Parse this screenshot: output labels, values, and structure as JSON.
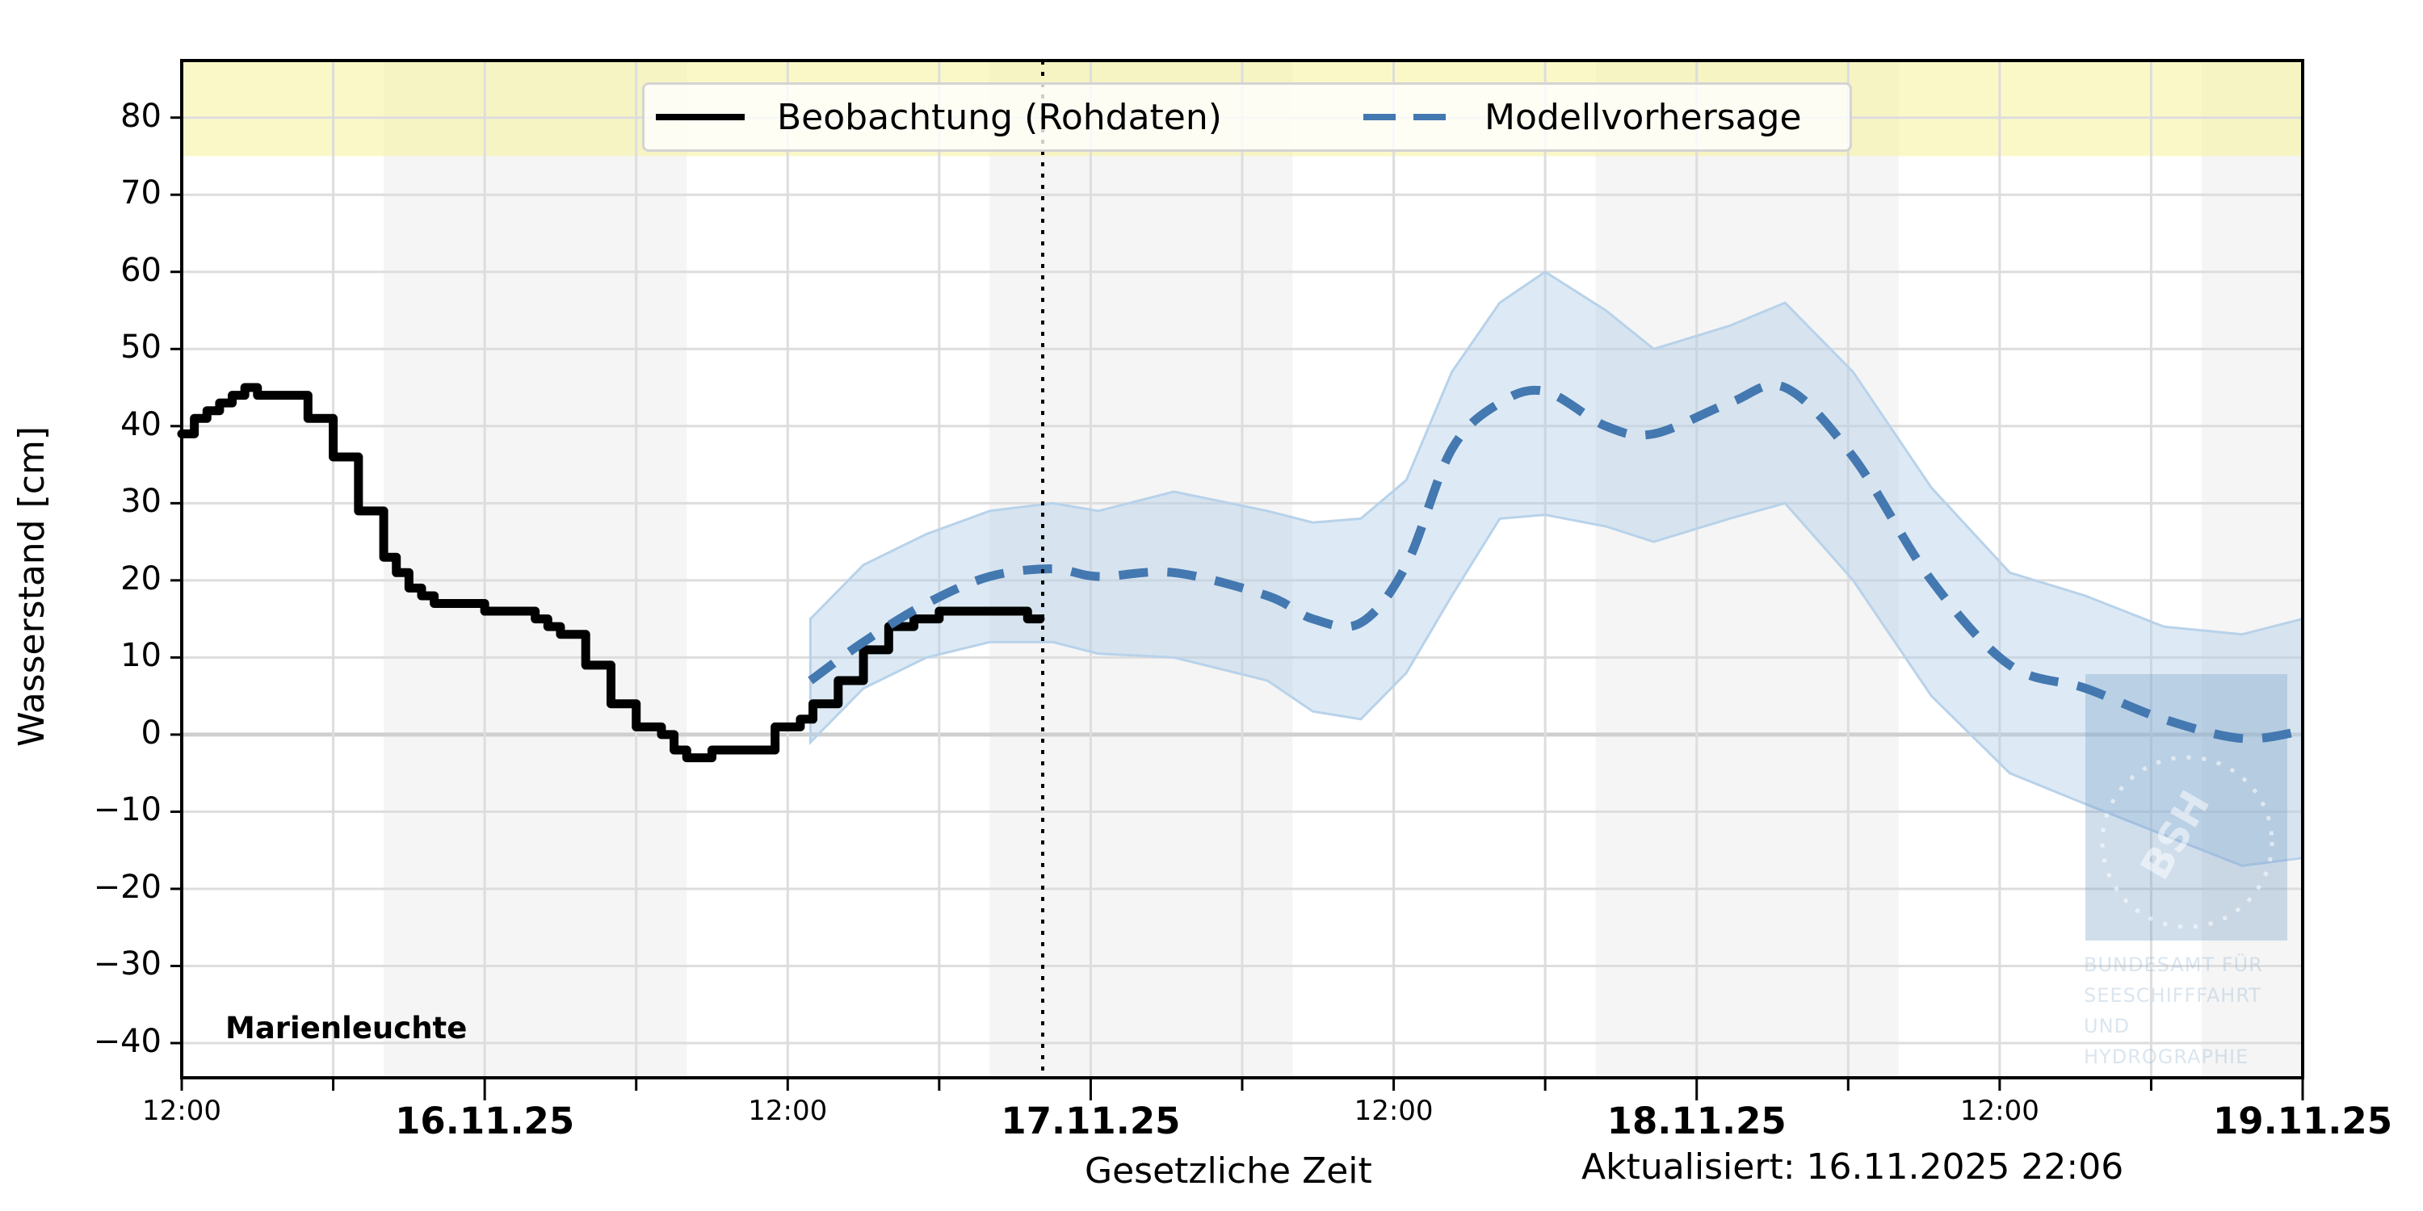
{
  "chart_data": {
    "type": "line",
    "title": "",
    "station": "Marienleuchte",
    "xlabel": "Gesetzliche Zeit",
    "ylabel": "Wasserstand [cm]",
    "updated": "Aktualisiert: 16.11.2025 22:06",
    "x_unit": "hours since 15.11.25 12:00",
    "xlim": [
      0,
      84
    ],
    "ylim": [
      -44.5,
      87.4
    ],
    "grid": true,
    "legend_position": "upper center",
    "yticks": [
      80,
      70,
      60,
      50,
      40,
      30,
      20,
      10,
      0,
      -10,
      -20,
      -30,
      -40
    ],
    "ytick_labels": [
      "80",
      "70",
      "60",
      "50",
      "40",
      "30",
      "20",
      "10",
      "0",
      "−10",
      "−20",
      "−30",
      "−40"
    ],
    "xticks": [
      {
        "h": 0,
        "label": "12:00",
        "major": false
      },
      {
        "h": 12,
        "label": "16.11.25",
        "major": true
      },
      {
        "h": 24,
        "label": "12:00",
        "major": false
      },
      {
        "h": 36,
        "label": "17.11.25",
        "major": true
      },
      {
        "h": 48,
        "label": "12:00",
        "major": false
      },
      {
        "h": 60,
        "label": "18.11.25",
        "major": true
      },
      {
        "h": 72,
        "label": "12:00",
        "major": false
      },
      {
        "h": 84,
        "label": "19.11.25",
        "major": true
      }
    ],
    "minor_xticks": [
      6,
      18,
      30,
      42,
      54,
      66,
      78
    ],
    "threshold_band": {
      "from": 75,
      "to": 87.4,
      "color": "#fbf8c8"
    },
    "night_bands": [
      [
        8,
        20
      ],
      [
        32,
        44
      ],
      [
        56,
        68
      ],
      [
        80,
        84
      ]
    ],
    "now_line_h": 34.1,
    "legend": [
      "Beobachtung (Rohdaten)",
      "Modellvorhersage"
    ],
    "series": [
      {
        "name": "Beobachtung (Rohdaten)",
        "color": "#000000",
        "style": "solid-step",
        "x": [
          0,
          0.5,
          1,
          1.5,
          2,
          2.5,
          3,
          3.5,
          4,
          5,
          6,
          7,
          8,
          8.5,
          9,
          9.5,
          10,
          11,
          12,
          13,
          14,
          14.5,
          15,
          16,
          17,
          18,
          19,
          19.5,
          20,
          20.5,
          21,
          22,
          23,
          23.5,
          24,
          24.5,
          25,
          26,
          27,
          28,
          29,
          30,
          31,
          32,
          33,
          33.5,
          34
        ],
        "values": [
          39,
          41,
          42,
          43,
          44,
          45,
          44,
          44,
          44,
          41,
          36,
          29,
          23,
          21,
          19,
          18,
          17,
          17,
          16,
          16,
          15,
          14,
          13,
          9,
          4,
          1,
          0,
          -2,
          -3,
          -3,
          -2,
          -2,
          -2,
          1,
          1,
          2,
          4,
          7,
          11,
          14,
          15,
          16,
          16,
          16,
          16,
          15,
          15
        ]
      },
      {
        "name": "Modellvorhersage",
        "color": "#4478b0",
        "style": "dashed",
        "x": [
          24.9,
          27,
          29.5,
          32,
          34.5,
          36.3,
          39.3,
          43,
          44.8,
          46.7,
          48.5,
          50.3,
          52.2,
          54,
          56.4,
          58.3,
          61.3,
          63.5,
          66.2,
          69.3,
          72.4,
          75.4,
          78.5,
          81.6,
          84
        ],
        "values": [
          7,
          12,
          17,
          20.5,
          21.5,
          20.5,
          21,
          18,
          15,
          14.5,
          22,
          37,
          43,
          44.5,
          40,
          39,
          43,
          45,
          36,
          20,
          9,
          6,
          2,
          -0.5,
          0.5
        ]
      },
      {
        "name": "Vorhersage-Unsicherheit (oben)",
        "color": "#b8d2ea",
        "style": "band-upper",
        "x": [
          24.9,
          27,
          29.5,
          32,
          34.5,
          36.3,
          39.3,
          43,
          44.8,
          46.7,
          48.5,
          50.3,
          52.2,
          54,
          56.4,
          58.3,
          61.3,
          63.5,
          66.2,
          69.3,
          72.4,
          75.4,
          78.5,
          81.6,
          84
        ],
        "values": [
          15,
          22,
          26,
          29,
          30,
          29,
          31.5,
          29,
          27.5,
          28,
          33,
          47,
          56,
          60,
          55,
          50,
          53,
          56,
          47,
          32,
          21,
          18,
          14,
          13,
          15
        ]
      },
      {
        "name": "Vorhersage-Unsicherheit (unten)",
        "color": "#b8d2ea",
        "style": "band-lower",
        "x": [
          24.9,
          27,
          29.5,
          32,
          34.5,
          36.3,
          39.3,
          43,
          44.8,
          46.7,
          48.5,
          50.3,
          52.2,
          54,
          56.4,
          58.3,
          61.3,
          63.5,
          66.2,
          69.3,
          72.4,
          75.4,
          78.5,
          81.6,
          84
        ],
        "values": [
          -1,
          6,
          10,
          12,
          12,
          10.5,
          10,
          7,
          3,
          2,
          8,
          18,
          28,
          28.5,
          27,
          25,
          28,
          30,
          20,
          5,
          -5,
          -9,
          -13,
          -17,
          -16
        ]
      }
    ]
  },
  "watermark": {
    "logo_text": "BSH",
    "lines": [
      "BUNDESAMT FÜR",
      "SEESCHIFFFAHRT",
      "UND",
      "HYDROGRAPHIE"
    ]
  }
}
